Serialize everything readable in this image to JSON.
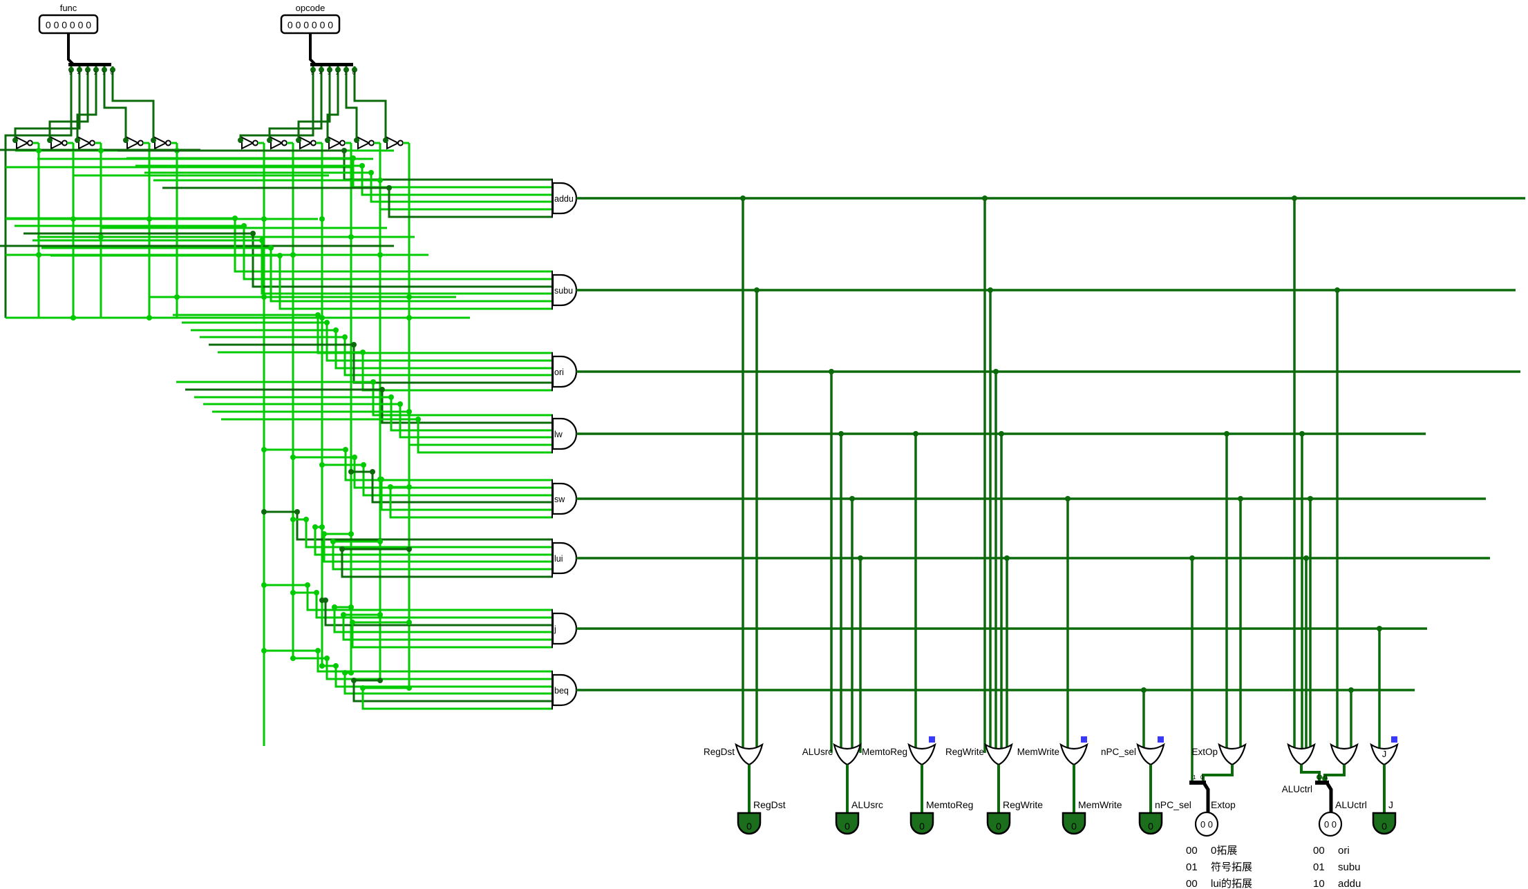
{
  "colors": {
    "wire_on": "#00CB00",
    "wire_off": "#0B6B0B",
    "wire_bus": "#000000",
    "gate_stroke": "#000000",
    "pin_fill": "#1B6E1B",
    "pin_value_text": "#FFFFFF",
    "floating_blue": "#3A3AFF",
    "background": "#FFFFFF"
  },
  "inputs": [
    {
      "label": "func",
      "value": "0 0 0 0 0 0"
    },
    {
      "label": "opcode",
      "value": "0 0 0 0 0 0"
    }
  ],
  "input_splitter_bits": [
    "5",
    "4",
    "3",
    "2",
    "1",
    "0"
  ],
  "output_splitter_bits": [
    "1",
    "0"
  ],
  "decode_gates": [
    "addu",
    "subu",
    "ori",
    "lw",
    "sw",
    "lui",
    "j",
    "beq"
  ],
  "control_gate_labels": [
    "RegDst",
    "ALUsrc",
    "MemtoReg",
    "RegWrite",
    "MemWrite",
    "nPC_sel",
    "ExtOp",
    "ALUctrl",
    "J"
  ],
  "output_pins": [
    {
      "label": "RegDst",
      "value": "0"
    },
    {
      "label": "ALUsrc",
      "value": "0"
    },
    {
      "label": "MemtoReg",
      "value": "0"
    },
    {
      "label": "RegWrite",
      "value": "0"
    },
    {
      "label": "MemWrite",
      "value": "0"
    },
    {
      "label": "nPC_sel",
      "value": "0"
    },
    {
      "label": "Extop",
      "value": "0 0"
    },
    {
      "label": "ALUctrl",
      "value": "0 0"
    },
    {
      "label": "J",
      "value": "0"
    }
  ],
  "legends": {
    "extop": [
      {
        "code": "00",
        "text": "0拓展"
      },
      {
        "code": "01",
        "text": "符号拓展"
      },
      {
        "code": "00",
        "text": "lui的拓展"
      }
    ],
    "aluctrl": [
      {
        "code": "00",
        "text": "ori"
      },
      {
        "code": "01",
        "text": "subu"
      },
      {
        "code": "10",
        "text": "addu"
      }
    ]
  }
}
